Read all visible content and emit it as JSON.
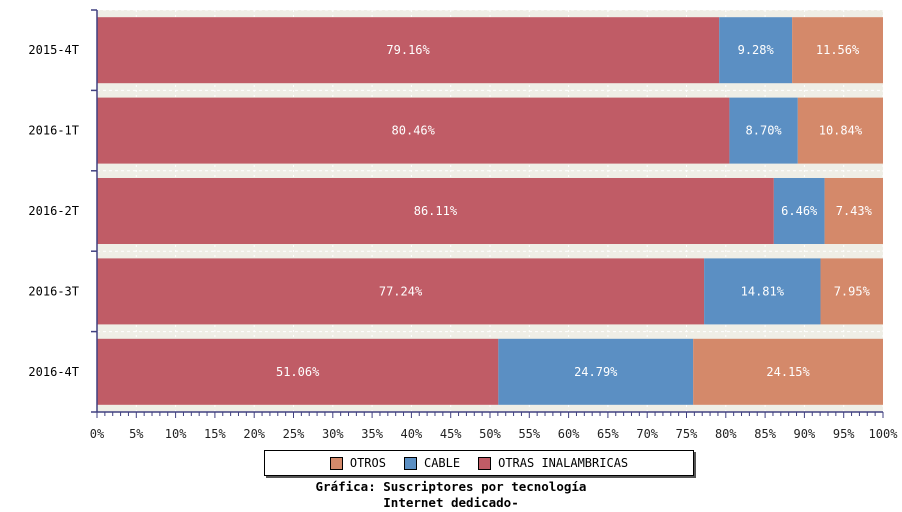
{
  "chart_data": {
    "type": "bar",
    "orientation": "horizontal",
    "stacked": true,
    "title_lines": [
      "Gráfica: Suscriptores por tecnología",
      "Internet dedicado-"
    ],
    "categories": [
      "2015-4T",
      "2016-1T",
      "2016-2T",
      "2016-3T",
      "2016-4T"
    ],
    "series": [
      {
        "name": "OTRAS INALAMBRICAS",
        "color": "#c05c66",
        "values": [
          79.16,
          80.46,
          86.11,
          77.24,
          51.06
        ]
      },
      {
        "name": "CABLE",
        "color": "#5b8fc3",
        "values": [
          9.28,
          8.7,
          6.46,
          14.81,
          24.79
        ]
      },
      {
        "name": "OTROS",
        "color": "#d4896a",
        "values": [
          11.56,
          10.84,
          7.43,
          7.95,
          24.15
        ]
      }
    ],
    "xlim": [
      0,
      100
    ],
    "xticks": [
      "0%",
      "5%",
      "10%",
      "15%",
      "20%",
      "25%",
      "30%",
      "35%",
      "40%",
      "45%",
      "50%",
      "55%",
      "60%",
      "65%",
      "70%",
      "75%",
      "80%",
      "85%",
      "90%",
      "95%",
      "100%"
    ],
    "legend": [
      "OTROS",
      "CABLE",
      "OTRAS INALAMBRICAS"
    ],
    "legend_position": "bottom",
    "grid": true
  },
  "colors": {
    "otras_inalambricas": "#c05c66",
    "cable": "#5b8fc3",
    "otros": "#d4896a",
    "axis": "#404080"
  }
}
